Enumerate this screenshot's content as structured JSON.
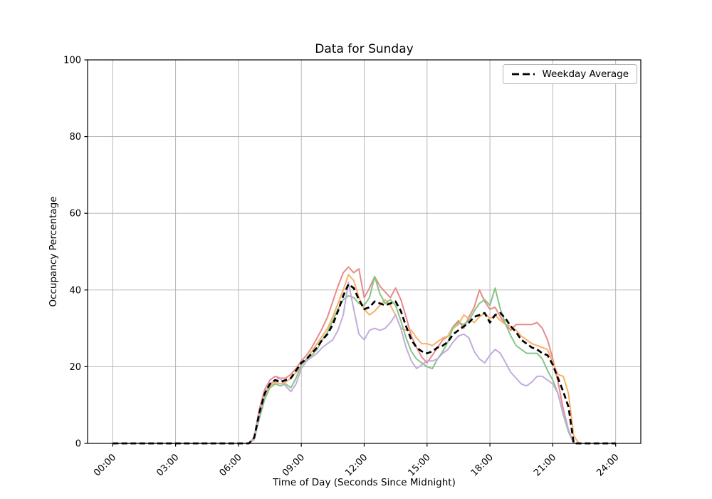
{
  "title": "Data for Sunday",
  "axes": {
    "xlabel": "Time of Day (Seconds Since Midnight)",
    "ylabel": "Occupancy Percentage"
  },
  "legend": {
    "label": "Weekday Average"
  },
  "colors": {
    "grid": "#b0b0b0",
    "frame": "#000000",
    "average_line": "#000000",
    "series_red": "#e8898b",
    "series_orange": "#f9b06a",
    "series_green": "#85c485",
    "series_purple": "#c3abdb"
  },
  "chart_data": {
    "type": "line",
    "title": "Data for Sunday",
    "xlabel": "Time of Day (Seconds Since Midnight)",
    "ylabel": "Occupancy Percentage",
    "ylim": [
      0,
      100
    ],
    "xlim_hours": [
      -1.2,
      25.2
    ],
    "grid": true,
    "legend_position": "upper right",
    "x_tick_labels": [
      "00:00",
      "03:00",
      "06:00",
      "09:00",
      "12:00",
      "15:00",
      "18:00",
      "21:00",
      "24:00"
    ],
    "x_tick_hours": [
      0,
      3,
      6,
      9,
      12,
      15,
      18,
      21,
      24
    ],
    "y_tick_labels": [
      "0",
      "20",
      "40",
      "60",
      "80",
      "100"
    ],
    "y_tick_values": [
      0,
      20,
      40,
      60,
      80,
      100
    ],
    "x_start_hour": 0,
    "x_step_hours": 0.25,
    "series": [
      {
        "name": "series-1",
        "color": "#e8898b",
        "dashed": false,
        "width": 2,
        "values": [
          0,
          0,
          0,
          0,
          0,
          0,
          0,
          0,
          0,
          0,
          0,
          0,
          0,
          0,
          0,
          0,
          0,
          0,
          0,
          0,
          0,
          0,
          0,
          0,
          0,
          0,
          0,
          1.5,
          9,
          14,
          16.5,
          17.5,
          17,
          17,
          18,
          19.5,
          21.5,
          23,
          25,
          27.5,
          30,
          33,
          37,
          41,
          44.5,
          46,
          44.5,
          45.5,
          38,
          40.5,
          43.5,
          41,
          39.5,
          38,
          40.5,
          37.5,
          33,
          28,
          25,
          22.5,
          21,
          23,
          25,
          27,
          28,
          30.5,
          32,
          30,
          33,
          35.5,
          40,
          37,
          35,
          35.5,
          33,
          31,
          29.5,
          31,
          31,
          31,
          31,
          31.5,
          30,
          27,
          22,
          16,
          9,
          3.5,
          0,
          0,
          0,
          0,
          0,
          0,
          0,
          0,
          0
        ]
      },
      {
        "name": "series-2",
        "color": "#f9b06a",
        "dashed": false,
        "width": 2,
        "values": [
          0,
          0,
          0,
          0,
          0,
          0,
          0,
          0,
          0,
          0,
          0,
          0,
          0,
          0,
          0,
          0,
          0,
          0,
          0,
          0,
          0,
          0,
          0,
          0,
          0,
          0,
          0,
          1,
          7,
          12.5,
          15,
          16,
          15.5,
          16,
          17,
          18.5,
          20.5,
          22,
          24,
          26,
          28,
          30,
          33,
          36.5,
          40,
          44,
          42.5,
          38,
          35,
          33.5,
          34.5,
          36,
          37.5,
          36,
          33.5,
          30,
          29.5,
          29.5,
          27.5,
          26,
          26,
          25.5,
          26.5,
          27.5,
          28,
          30,
          31,
          33.5,
          32.5,
          31.5,
          33,
          34,
          32.5,
          33.5,
          32,
          31,
          30.5,
          29.5,
          28,
          27,
          26,
          25.5,
          25,
          24.5,
          21,
          18,
          17.5,
          13,
          2,
          0,
          0,
          0,
          0,
          0,
          0,
          0,
          0
        ]
      },
      {
        "name": "series-3",
        "color": "#85c485",
        "dashed": false,
        "width": 2,
        "values": [
          0,
          0,
          0,
          0,
          0,
          0,
          0,
          0,
          0,
          0,
          0,
          0,
          0,
          0,
          0,
          0,
          0,
          0,
          0,
          0,
          0,
          0,
          0,
          0,
          0,
          0,
          0,
          1,
          6.5,
          11.5,
          14.5,
          15.5,
          15,
          15.5,
          14.5,
          17,
          20.5,
          22,
          23,
          24.5,
          27,
          29,
          32,
          35,
          37.5,
          38.5,
          38,
          36.5,
          36,
          38,
          43.5,
          39,
          36.5,
          37.5,
          36,
          32,
          27.5,
          24,
          22,
          21,
          20,
          19.5,
          22,
          24,
          26.5,
          30.5,
          31.5,
          31,
          32,
          34.5,
          36.5,
          37.5,
          36,
          40.5,
          35,
          31,
          28,
          25.5,
          24.5,
          23.5,
          23.5,
          23.5,
          22,
          19,
          16.5,
          13,
          7.5,
          3,
          0,
          0,
          0,
          0,
          0,
          0,
          0,
          0,
          0
        ]
      },
      {
        "name": "series-4",
        "color": "#c3abdb",
        "dashed": false,
        "width": 2,
        "values": [
          0,
          0,
          0,
          0,
          0,
          0,
          0,
          0,
          0,
          0,
          0,
          0,
          0,
          0,
          0,
          0,
          0,
          0,
          0,
          0,
          0,
          0,
          0,
          0,
          0,
          0,
          0,
          1,
          7.5,
          13,
          15.5,
          16.5,
          17,
          15,
          13.5,
          15.5,
          19.5,
          21.5,
          22.5,
          23.5,
          25,
          26,
          27,
          29.5,
          33.5,
          42,
          35,
          28.5,
          27,
          29.5,
          30,
          29.5,
          30,
          31.5,
          33.5,
          30,
          25,
          21.5,
          19.5,
          20.5,
          21.5,
          21.5,
          22,
          23.5,
          24.5,
          26.5,
          28,
          28.5,
          27.5,
          24,
          22,
          21,
          23,
          24.5,
          23.5,
          21,
          18.5,
          17,
          15.5,
          15,
          16,
          17.5,
          17.5,
          16.5,
          15.5,
          13,
          8,
          3.5,
          0,
          0,
          0,
          0,
          0,
          0,
          0,
          0,
          0
        ]
      },
      {
        "name": "Weekday Average",
        "color": "#000000",
        "dashed": true,
        "width": 2.7,
        "values": [
          0,
          0,
          0,
          0,
          0,
          0,
          0,
          0,
          0,
          0,
          0,
          0,
          0,
          0,
          0,
          0,
          0,
          0,
          0,
          0,
          0,
          0,
          0,
          0,
          0,
          0,
          0,
          1.5,
          8,
          13,
          15.5,
          16.5,
          16,
          16.5,
          17,
          19,
          21,
          22,
          23.5,
          25,
          27,
          28.5,
          31,
          34.5,
          38.5,
          41.5,
          40.5,
          37.5,
          35,
          35.5,
          37,
          36.5,
          36,
          36.5,
          37,
          34.5,
          30.5,
          27,
          25,
          24,
          23.5,
          24,
          25,
          25.5,
          26.5,
          28.5,
          29.5,
          30.5,
          31.5,
          33,
          33.5,
          34,
          31.5,
          33.5,
          34,
          32.5,
          30.5,
          29,
          27,
          26,
          25,
          24.5,
          23.5,
          23,
          20.5,
          17,
          13.5,
          9.5,
          0,
          0,
          0,
          0,
          0,
          0,
          0,
          0,
          0
        ]
      }
    ]
  }
}
